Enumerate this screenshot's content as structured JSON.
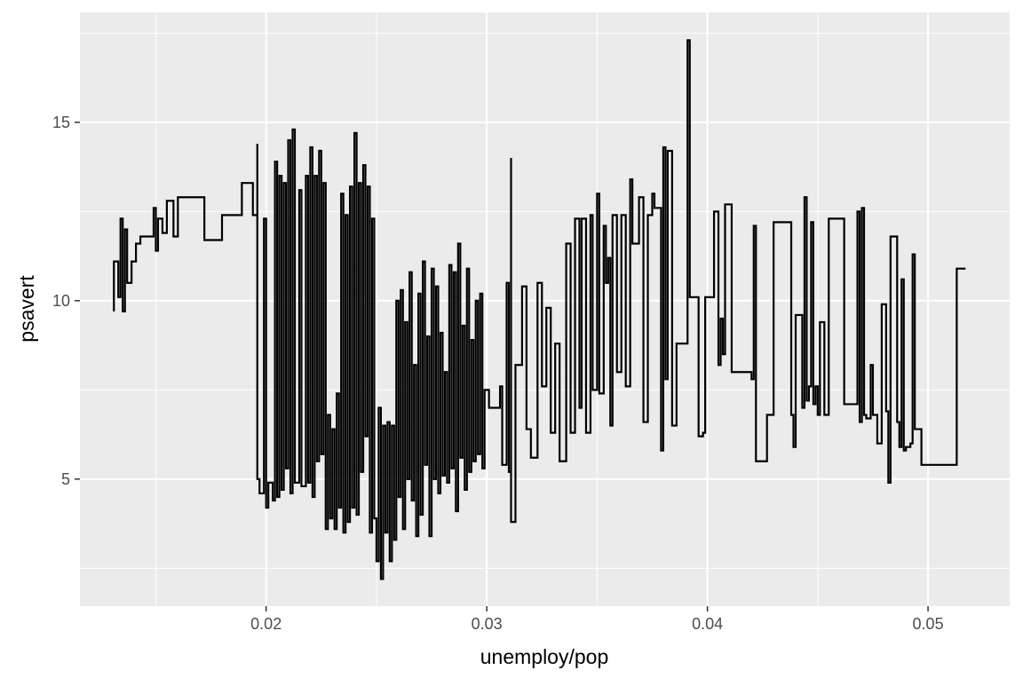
{
  "chart_data": {
    "type": "line",
    "subtype": "step",
    "title": "",
    "xlabel": "unemploy/pop",
    "ylabel": "psavert",
    "xlim": [
      0.01156,
      0.0537
    ],
    "ylim": [
      1.44,
      18.08
    ],
    "x_ticks": [
      0.02,
      0.03,
      0.04,
      0.05
    ],
    "x_tick_labels": [
      "0.02",
      "0.03",
      "0.04",
      "0.05"
    ],
    "x_minor": [
      0.015,
      0.025,
      0.035,
      0.045
    ],
    "y_ticks": [
      5,
      10,
      15
    ],
    "y_tick_labels": [
      "5",
      "10",
      "15"
    ],
    "y_minor": [
      2.5,
      7.5,
      12.5,
      17.5
    ],
    "grid": true,
    "colors": {
      "panel": "#EBEBEB",
      "grid": "#FFFFFF",
      "line": "#000000",
      "text": "#4D4D4D",
      "title": "#000000"
    },
    "points": [
      [
        0.0131,
        9.7
      ],
      [
        0.0131,
        11.1
      ],
      [
        0.0133,
        10.1
      ],
      [
        0.0134,
        12.3
      ],
      [
        0.0135,
        9.7
      ],
      [
        0.0136,
        12.0
      ],
      [
        0.0137,
        10.5
      ],
      [
        0.0139,
        11.1
      ],
      [
        0.0141,
        11.6
      ],
      [
        0.0143,
        11.8
      ],
      [
        0.0148,
        11.8
      ],
      [
        0.0149,
        12.6
      ],
      [
        0.015,
        11.4
      ],
      [
        0.0151,
        12.3
      ],
      [
        0.0153,
        11.9
      ],
      [
        0.0155,
        12.8
      ],
      [
        0.0158,
        11.8
      ],
      [
        0.016,
        12.9
      ],
      [
        0.0172,
        11.7
      ],
      [
        0.018,
        12.4
      ],
      [
        0.0189,
        13.3
      ],
      [
        0.0194,
        12.4
      ],
      [
        0.0196,
        14.4
      ],
      [
        0.0196,
        5.0
      ],
      [
        0.0197,
        4.6
      ],
      [
        0.0199,
        12.3
      ],
      [
        0.02,
        4.2
      ],
      [
        0.0201,
        4.9
      ],
      [
        0.0203,
        4.4
      ],
      [
        0.0204,
        13.9
      ],
      [
        0.0205,
        4.5
      ],
      [
        0.0206,
        13.5
      ],
      [
        0.0207,
        4.7
      ],
      [
        0.0208,
        13.3
      ],
      [
        0.0209,
        5.3
      ],
      [
        0.021,
        14.5
      ],
      [
        0.0211,
        4.6
      ],
      [
        0.0212,
        14.8
      ],
      [
        0.0213,
        4.9
      ],
      [
        0.0215,
        13.1
      ],
      [
        0.0216,
        4.8
      ],
      [
        0.0218,
        13.5
      ],
      [
        0.0219,
        4.9
      ],
      [
        0.022,
        14.3
      ],
      [
        0.0221,
        4.5
      ],
      [
        0.0222,
        13.5
      ],
      [
        0.0223,
        5.5
      ],
      [
        0.0224,
        14.2
      ],
      [
        0.0225,
        5.7
      ],
      [
        0.0226,
        13.3
      ],
      [
        0.0227,
        3.6
      ],
      [
        0.0228,
        6.8
      ],
      [
        0.0229,
        3.9
      ],
      [
        0.023,
        6.4
      ],
      [
        0.0231,
        3.6
      ],
      [
        0.0232,
        7.4
      ],
      [
        0.0233,
        4.2
      ],
      [
        0.0234,
        13.0
      ],
      [
        0.0235,
        3.5
      ],
      [
        0.0236,
        12.4
      ],
      [
        0.0237,
        3.8
      ],
      [
        0.0238,
        13.2
      ],
      [
        0.0239,
        4.2
      ],
      [
        0.024,
        14.7
      ],
      [
        0.0241,
        4.0
      ],
      [
        0.0242,
        13.3
      ],
      [
        0.0243,
        5.2
      ],
      [
        0.0244,
        13.8
      ],
      [
        0.0245,
        6.2
      ],
      [
        0.0246,
        13.2
      ],
      [
        0.0247,
        3.5
      ],
      [
        0.0248,
        12.3
      ],
      [
        0.0249,
        3.9
      ],
      [
        0.025,
        2.7
      ],
      [
        0.0251,
        7.0
      ],
      [
        0.0252,
        2.2
      ],
      [
        0.0253,
        6.5
      ],
      [
        0.0254,
        3.5
      ],
      [
        0.0255,
        6.6
      ],
      [
        0.0256,
        2.7
      ],
      [
        0.0257,
        6.5
      ],
      [
        0.0258,
        3.3
      ],
      [
        0.0259,
        10.0
      ],
      [
        0.026,
        4.5
      ],
      [
        0.0261,
        10.3
      ],
      [
        0.0262,
        3.6
      ],
      [
        0.0263,
        9.4
      ],
      [
        0.0264,
        5.0
      ],
      [
        0.0265,
        10.8
      ],
      [
        0.0266,
        4.4
      ],
      [
        0.0267,
        8.2
      ],
      [
        0.0268,
        3.4
      ],
      [
        0.0269,
        10.2
      ],
      [
        0.027,
        4.0
      ],
      [
        0.0271,
        11.1
      ],
      [
        0.0272,
        5.4
      ],
      [
        0.0273,
        9.0
      ],
      [
        0.0274,
        3.4
      ],
      [
        0.0275,
        10.9
      ],
      [
        0.0276,
        5.0
      ],
      [
        0.0277,
        10.4
      ],
      [
        0.0278,
        4.6
      ],
      [
        0.0279,
        9.1
      ],
      [
        0.028,
        5.1
      ],
      [
        0.0281,
        8.0
      ],
      [
        0.0282,
        4.9
      ],
      [
        0.0283,
        11.0
      ],
      [
        0.0284,
        5.3
      ],
      [
        0.0285,
        10.8
      ],
      [
        0.0286,
        4.1
      ],
      [
        0.0287,
        11.6
      ],
      [
        0.0288,
        5.6
      ],
      [
        0.0289,
        9.3
      ],
      [
        0.029,
        4.7
      ],
      [
        0.0291,
        10.9
      ],
      [
        0.0292,
        5.2
      ],
      [
        0.0293,
        8.9
      ],
      [
        0.0294,
        5.5
      ],
      [
        0.0295,
        10.0
      ],
      [
        0.0296,
        5.7
      ],
      [
        0.0297,
        10.2
      ],
      [
        0.0298,
        5.3
      ],
      [
        0.0299,
        7.5
      ],
      [
        0.0301,
        7.0
      ],
      [
        0.0306,
        7.6
      ],
      [
        0.0307,
        5.4
      ],
      [
        0.0309,
        10.5
      ],
      [
        0.031,
        5.2
      ],
      [
        0.0311,
        14.0
      ],
      [
        0.0311,
        3.8
      ],
      [
        0.0313,
        8.2
      ],
      [
        0.0316,
        10.4
      ],
      [
        0.0318,
        6.4
      ],
      [
        0.032,
        5.6
      ],
      [
        0.0323,
        10.5
      ],
      [
        0.0325,
        7.6
      ],
      [
        0.0327,
        9.8
      ],
      [
        0.0329,
        6.3
      ],
      [
        0.0331,
        8.8
      ],
      [
        0.0333,
        5.5
      ],
      [
        0.0336,
        11.6
      ],
      [
        0.0338,
        6.3
      ],
      [
        0.034,
        12.3
      ],
      [
        0.0342,
        7.0
      ],
      [
        0.0343,
        12.3
      ],
      [
        0.0345,
        6.3
      ],
      [
        0.0347,
        12.4
      ],
      [
        0.0348,
        7.5
      ],
      [
        0.035,
        13.0
      ],
      [
        0.0351,
        7.4
      ],
      [
        0.0353,
        12.1
      ],
      [
        0.0354,
        10.5
      ],
      [
        0.0355,
        11.2
      ],
      [
        0.0356,
        6.5
      ],
      [
        0.0357,
        12.4
      ],
      [
        0.0359,
        8.0
      ],
      [
        0.0361,
        12.4
      ],
      [
        0.0363,
        7.6
      ],
      [
        0.0365,
        13.4
      ],
      [
        0.0366,
        11.6
      ],
      [
        0.0369,
        12.9
      ],
      [
        0.0371,
        6.6
      ],
      [
        0.0373,
        12.4
      ],
      [
        0.0375,
        13.0
      ],
      [
        0.0376,
        12.6
      ],
      [
        0.0379,
        5.8
      ],
      [
        0.038,
        14.3
      ],
      [
        0.0381,
        7.8
      ],
      [
        0.0382,
        14.2
      ],
      [
        0.0384,
        6.5
      ],
      [
        0.0386,
        8.8
      ],
      [
        0.0391,
        17.3
      ],
      [
        0.0392,
        10.1
      ],
      [
        0.0396,
        6.2
      ],
      [
        0.0398,
        6.3
      ],
      [
        0.0399,
        10.1
      ],
      [
        0.0403,
        12.5
      ],
      [
        0.0405,
        8.2
      ],
      [
        0.0406,
        9.5
      ],
      [
        0.0407,
        8.5
      ],
      [
        0.0408,
        12.7
      ],
      [
        0.0411,
        8.0
      ],
      [
        0.042,
        7.8
      ],
      [
        0.0421,
        12.1
      ],
      [
        0.0422,
        5.5
      ],
      [
        0.0427,
        6.8
      ],
      [
        0.043,
        12.2
      ],
      [
        0.0438,
        6.8
      ],
      [
        0.0439,
        5.9
      ],
      [
        0.044,
        9.6
      ],
      [
        0.0443,
        7.0
      ],
      [
        0.0444,
        12.9
      ],
      [
        0.0445,
        7.2
      ],
      [
        0.0446,
        7.6
      ],
      [
        0.0447,
        12.2
      ],
      [
        0.0448,
        7.1
      ],
      [
        0.0449,
        7.6
      ],
      [
        0.045,
        6.8
      ],
      [
        0.0451,
        9.4
      ],
      [
        0.0453,
        6.8
      ],
      [
        0.0455,
        12.3
      ],
      [
        0.0462,
        7.1
      ],
      [
        0.0468,
        12.5
      ],
      [
        0.0469,
        6.6
      ],
      [
        0.047,
        12.6
      ],
      [
        0.0471,
        6.8
      ],
      [
        0.0472,
        6.7
      ],
      [
        0.0474,
        8.2
      ],
      [
        0.0475,
        6.8
      ],
      [
        0.0477,
        6.0
      ],
      [
        0.0479,
        9.9
      ],
      [
        0.0481,
        6.9
      ],
      [
        0.0482,
        4.9
      ],
      [
        0.0483,
        11.8
      ],
      [
        0.0486,
        6.6
      ],
      [
        0.0487,
        5.9
      ],
      [
        0.0488,
        10.6
      ],
      [
        0.0489,
        5.8
      ],
      [
        0.049,
        5.9
      ],
      [
        0.0492,
        6.0
      ],
      [
        0.0493,
        11.3
      ],
      [
        0.0494,
        6.4
      ],
      [
        0.0497,
        5.4
      ],
      [
        0.0513,
        10.9
      ],
      [
        0.0517,
        10.9
      ]
    ]
  }
}
